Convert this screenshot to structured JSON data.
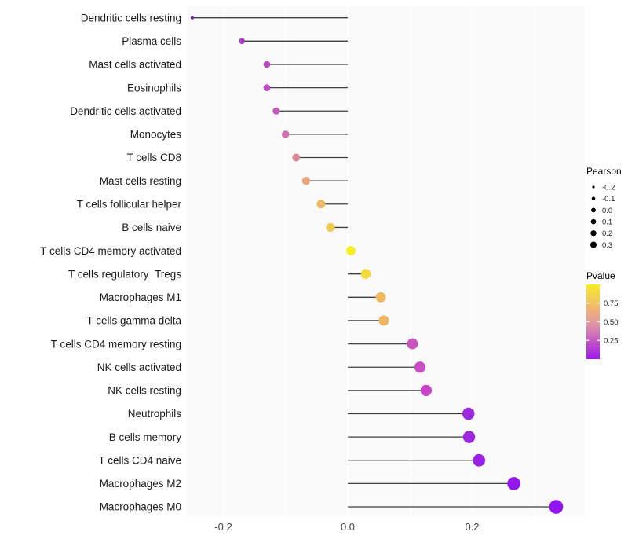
{
  "chart_data": {
    "type": "scatter",
    "variant": "lollipop",
    "title": "",
    "xlabel": "",
    "ylabel": "",
    "xlim": [
      -0.26,
      0.38
    ],
    "grid": true,
    "gridlines_x": [
      -0.2,
      -0.1,
      0.0,
      0.1,
      0.2,
      0.3
    ],
    "x_ticks": [
      {
        "value": -0.2,
        "label": "-0.2"
      },
      {
        "value": 0.0,
        "label": "0.0"
      },
      {
        "value": 0.2,
        "label": "0.2"
      }
    ],
    "points": [
      {
        "label": "Dendritic cells resting",
        "pearson": -0.25,
        "color": "#7F1DC4"
      },
      {
        "label": "Plasma cells",
        "pearson": -0.17,
        "color": "#AC3CC6"
      },
      {
        "label": "Mast cells activated",
        "pearson": -0.13,
        "color": "#BC4BC4"
      },
      {
        "label": "Eosinophils",
        "pearson": -0.13,
        "color": "#BC4BC4"
      },
      {
        "label": "Dendritic cells activated",
        "pearson": -0.115,
        "color": "#C65BBB"
      },
      {
        "label": "Monocytes",
        "pearson": -0.1,
        "color": "#CE72AF"
      },
      {
        "label": "T cells CD8",
        "pearson": -0.083,
        "color": "#D98C95"
      },
      {
        "label": "Mast cells resting",
        "pearson": -0.067,
        "color": "#E8A57D"
      },
      {
        "label": "T cells follicular helper",
        "pearson": -0.043,
        "color": "#EBB968"
      },
      {
        "label": "B cells naive",
        "pearson": -0.028,
        "color": "#EDCB50"
      },
      {
        "label": "T cells CD4 memory activated",
        "pearson": 0.005,
        "color": "#F6EE26"
      },
      {
        "label": "T cells regulatory  Tregs",
        "pearson": 0.029,
        "color": "#F2DC3A"
      },
      {
        "label": "Macrophages M1",
        "pearson": 0.053,
        "color": "#F0B95F"
      },
      {
        "label": "T cells gamma delta",
        "pearson": 0.058,
        "color": "#F0B560"
      },
      {
        "label": "T cells CD4 memory resting",
        "pearson": 0.104,
        "color": "#CC53BC"
      },
      {
        "label": "NK cells activated",
        "pearson": 0.116,
        "color": "#CA4DC3"
      },
      {
        "label": "NK cells resting",
        "pearson": 0.126,
        "color": "#C746C8"
      },
      {
        "label": "Neutrophils",
        "pearson": 0.194,
        "color": "#9D28DD"
      },
      {
        "label": "B cells memory",
        "pearson": 0.195,
        "color": "#9D28DD"
      },
      {
        "label": "T cells CD4 naive",
        "pearson": 0.211,
        "color": "#9A21E4"
      },
      {
        "label": "Macrophages M2",
        "pearson": 0.267,
        "color": "#9316EC"
      },
      {
        "label": "Macrophages M0",
        "pearson": 0.335,
        "color": "#9214EF"
      }
    ],
    "size_legend": {
      "title": "Pearson",
      "entries": [
        {
          "label": "-0.2",
          "radius": 1.6
        },
        {
          "label": "-0.1",
          "radius": 2.3
        },
        {
          "label": "0.0",
          "radius": 2.9
        },
        {
          "label": "0.1",
          "radius": 3.3
        },
        {
          "label": "0.2",
          "radius": 3.7
        },
        {
          "label": "0.3",
          "radius": 4.0
        }
      ],
      "dot_color": "#000000"
    },
    "color_legend": {
      "title": "Pvalue",
      "ticks": [
        {
          "p": 0.75,
          "label": "0.75"
        },
        {
          "p": 0.5,
          "label": "0.50"
        },
        {
          "p": 0.25,
          "label": "0.25"
        }
      ],
      "gradient": [
        {
          "offset": "0%",
          "color": "#F8EC23"
        },
        {
          "offset": "18%",
          "color": "#F5CE55"
        },
        {
          "offset": "35%",
          "color": "#EFAF77"
        },
        {
          "offset": "50%",
          "color": "#E29A99"
        },
        {
          "offset": "65%",
          "color": "#D277B8"
        },
        {
          "offset": "82%",
          "color": "#BA45CC"
        },
        {
          "offset": "100%",
          "color": "#9D19F0"
        }
      ]
    },
    "style": {
      "panel_bg": "#FAFAFA",
      "gridline_color": "#FFFFFF",
      "stem_color": "#3F3F3F",
      "label_color": "#1B1B1B",
      "tick_label_color": "#454545"
    }
  }
}
